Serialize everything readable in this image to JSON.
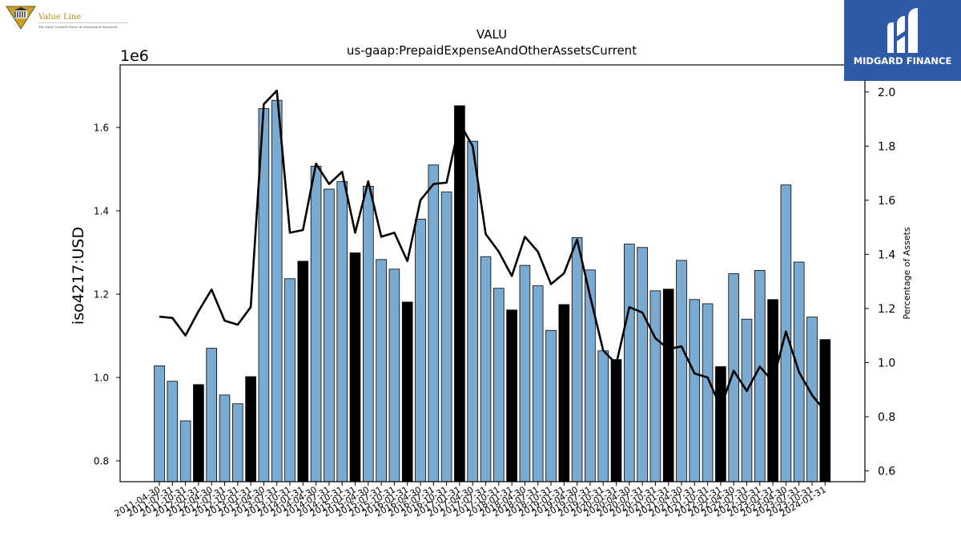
{
  "logos": {
    "value_line_name": "Value Line",
    "value_line_tagline": "The Most Trusted Name in Investment Research",
    "midgard_name": "MIDGARD FINANCE"
  },
  "chart_data": {
    "type": "bar",
    "title": "VALU",
    "subtitle": "us-gaap:PrepaidExpenseAndOtherAssetsCurrent",
    "ylabel": "iso4217:USD",
    "y_offset_label": "1e6",
    "y2label": "Percentage of Assets",
    "ylim": [
      0.75,
      1.75
    ],
    "y2lim": [
      0.56,
      2.1
    ],
    "yticks": [
      "0.8",
      "1.0",
      "1.2",
      "1.4",
      "1.6"
    ],
    "y2ticks": [
      "0.6",
      "0.8",
      "1.0",
      "1.2",
      "1.4",
      "1.6",
      "1.8",
      "2.0"
    ],
    "categories": [
      "2011-04-30",
      "2011-07-31",
      "2011-10-31",
      "2012-01-31",
      "2012-04-30",
      "2012-07-31",
      "2012-10-31",
      "2013-01-31",
      "2013-04-30",
      "2013-07-31",
      "2013-10-31",
      "2014-01-31",
      "2014-04-30",
      "2014-07-31",
      "2014-10-31",
      "2015-01-31",
      "2015-04-30",
      "2015-07-31",
      "2015-10-31",
      "2016-01-31",
      "2016-04-30",
      "2016-07-31",
      "2016-10-31",
      "2017-01-31",
      "2017-04-30",
      "2017-07-31",
      "2017-10-31",
      "2018-01-31",
      "2018-04-30",
      "2018-07-31",
      "2018-10-31",
      "2019-01-31",
      "2019-04-30",
      "2019-07-31",
      "2019-10-31",
      "2020-01-31",
      "2020-04-30",
      "2020-07-31",
      "2020-10-31",
      "2021-01-31",
      "2021-04-30",
      "2021-07-31",
      "2021-10-31",
      "2022-01-31",
      "2022-04-30",
      "2022-07-31",
      "2022-10-31",
      "2023-01-31",
      "2023-04-30",
      "2023-07-31",
      "2023-10-31",
      "2024-01-31"
    ],
    "bar_values": [
      1.028,
      0.991,
      0.896,
      0.983,
      1.07,
      0.958,
      0.937,
      1.002,
      1.645,
      1.665,
      1.237,
      1.279,
      1.507,
      1.452,
      1.47,
      1.299,
      1.459,
      1.283,
      1.26,
      1.181,
      1.38,
      1.51,
      1.445,
      1.652,
      1.567,
      1.29,
      1.214,
      1.162,
      1.269,
      1.22,
      1.113,
      1.175,
      1.336,
      1.258,
      1.064,
      1.043,
      1.32,
      1.312,
      1.208,
      1.212,
      1.281,
      1.187,
      1.177,
      1.026,
      1.249,
      1.14,
      1.257,
      1.187,
      1.462,
      1.277,
      1.145,
      1.091
    ],
    "highlighted_categories": [
      "2012-01-31",
      "2013-01-31",
      "2014-01-31",
      "2015-01-31",
      "2016-01-31",
      "2017-01-31",
      "2018-01-31",
      "2019-01-31",
      "2020-01-31",
      "2021-01-31",
      "2022-01-31",
      "2023-01-31",
      "2024-01-31"
    ],
    "line_values": [
      1.17,
      1.165,
      1.1,
      1.19,
      1.27,
      1.155,
      1.14,
      1.205,
      1.955,
      2.005,
      1.48,
      1.49,
      1.735,
      1.66,
      1.705,
      1.48,
      1.67,
      1.465,
      1.48,
      1.375,
      1.6,
      1.66,
      1.665,
      1.885,
      1.8,
      1.475,
      1.41,
      1.32,
      1.465,
      1.41,
      1.29,
      1.33,
      1.455,
      1.245,
      1.045,
      0.995,
      1.205,
      1.185,
      1.09,
      1.05,
      1.06,
      0.96,
      0.945,
      0.835,
      0.97,
      0.895,
      0.985,
      0.93,
      1.115,
      0.965,
      0.88,
      0.82
    ],
    "colors": {
      "bar": "#7aaad0",
      "bar_highlight": "#000000",
      "bar_edge": "#000000",
      "line": "#000000"
    }
  }
}
